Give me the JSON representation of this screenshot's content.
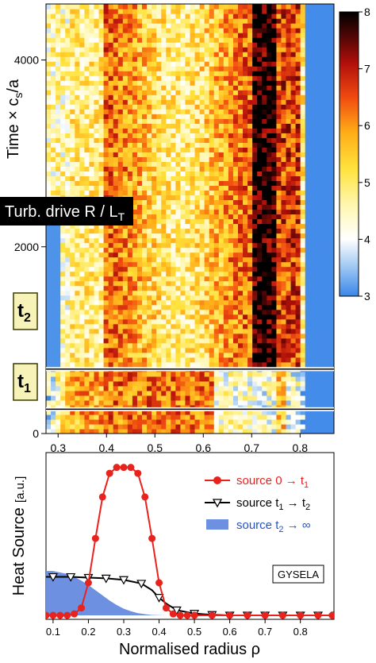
{
  "colors": {
    "map_low": "#3a86e8",
    "map_mid": "#fff5a0",
    "map_high": "#000000",
    "source1": "#e8231e",
    "source2": "#000000",
    "source3_fill": "#6d90e0",
    "source3_text": "#2452c8",
    "marker_box": "#f6f2b8",
    "drive_label_bg": "#000000"
  },
  "chart_data": [
    {
      "type": "heatmap",
      "title": "",
      "xlabel": "",
      "ylabel": "Time × c_s/a",
      "ylabel_parts": {
        "main": "Time × c",
        "sub": "s",
        "tail": "/a"
      },
      "xlim": [
        0.275,
        0.87
      ],
      "ylim": [
        0,
        4600
      ],
      "x_ticks": [
        "0.3",
        "0.4",
        "0.5",
        "0.6",
        "0.7",
        "0.8"
      ],
      "x_tick_values": [
        0.3,
        0.4,
        0.5,
        0.6,
        0.7,
        0.8
      ],
      "y_ticks": [
        "0",
        "2000",
        "4000"
      ],
      "y_tick_values": [
        0,
        2000,
        4000
      ],
      "colorbar": {
        "label": "Turb. drive R / L_T",
        "label_parts": {
          "main": "Turb. drive R / L",
          "sub": "T"
        },
        "range": [
          3,
          8
        ],
        "ticks": [
          "3",
          "4",
          "5",
          "6",
          "7",
          "8"
        ],
        "tick_values": [
          3,
          4,
          5,
          6,
          7,
          8
        ]
      },
      "markers": [
        {
          "label": "t",
          "sub": "1",
          "time": 260
        },
        {
          "label": "t",
          "sub": "2",
          "time": 690
        }
      ],
      "profile": {
        "description_rho_edges": [
          0.275,
          0.32,
          0.39,
          0.7,
          0.75,
          0.8,
          0.87
        ],
        "values": [
          3.6,
          4.8,
          5.6,
          6.4,
          7.9,
          6.8,
          3.1
        ]
      },
      "grid": false
    },
    {
      "type": "line",
      "title": "",
      "xlabel": "Normalised radius ρ",
      "ylabel": "Heat Source",
      "ylabel_unit": "[a.u.]",
      "xlim": [
        0.08,
        0.895
      ],
      "ylim": [
        0,
        1.1
      ],
      "x_ticks": [
        "0.1",
        "0.2",
        "0.3",
        "0.4",
        "0.5",
        "0.6",
        "0.7",
        "0.8"
      ],
      "x_tick_values": [
        0.1,
        0.2,
        0.3,
        0.4,
        0.5,
        0.6,
        0.7,
        0.8
      ],
      "legend_position": "top-right",
      "annotation": "GYSELA",
      "series": [
        {
          "name": "source 0 → t_1",
          "name_parts": {
            "main": "source 0 → t",
            "sub": "1",
            "tail": ""
          },
          "marker": "circle",
          "x": [
            0.08,
            0.1,
            0.12,
            0.14,
            0.16,
            0.18,
            0.2,
            0.22,
            0.24,
            0.26,
            0.28,
            0.3,
            0.32,
            0.34,
            0.36,
            0.38,
            0.4,
            0.42,
            0.44,
            0.46,
            0.48,
            0.5,
            0.55,
            0.6,
            0.65,
            0.7,
            0.75,
            0.8,
            0.85,
            0.89
          ],
          "y": [
            0.0,
            0.0,
            0.0,
            0.0,
            0.01,
            0.05,
            0.22,
            0.52,
            0.8,
            0.96,
            1.0,
            1.0,
            1.0,
            0.96,
            0.8,
            0.52,
            0.22,
            0.05,
            0.01,
            0.0,
            0.0,
            0.0,
            0.0,
            0.0,
            0.0,
            0.0,
            0.0,
            0.0,
            0.0,
            0.0
          ]
        },
        {
          "name": "source t_1 → t_2",
          "name_parts": {
            "main": "source t",
            "sub": "1",
            "tail": " → t",
            "sub2": "2"
          },
          "marker": "triangle-down",
          "x": [
            0.08,
            0.1,
            0.15,
            0.2,
            0.25,
            0.3,
            0.35,
            0.38,
            0.4,
            0.42,
            0.45,
            0.5,
            0.55,
            0.6,
            0.7,
            0.8,
            0.89
          ],
          "y": [
            0.26,
            0.26,
            0.26,
            0.255,
            0.25,
            0.24,
            0.215,
            0.17,
            0.12,
            0.08,
            0.035,
            0.012,
            0.004,
            0.0,
            0.0,
            0.0,
            0.0
          ]
        },
        {
          "name": "source t_2 → ∞",
          "name_parts": {
            "main": "source t",
            "sub": "2",
            "tail": " → ∞"
          },
          "marker": "filled-area",
          "x": [
            0.08,
            0.1,
            0.12,
            0.14,
            0.16,
            0.18,
            0.2,
            0.22,
            0.24,
            0.26,
            0.28,
            0.3,
            0.32,
            0.34,
            0.36,
            0.38,
            0.4,
            0.42,
            0.45,
            0.5,
            0.6,
            0.89
          ],
          "y": [
            0.3,
            0.3,
            0.29,
            0.28,
            0.26,
            0.235,
            0.205,
            0.17,
            0.135,
            0.1,
            0.07,
            0.045,
            0.028,
            0.015,
            0.008,
            0.003,
            0.001,
            0.0,
            0.0,
            0.0,
            0.0,
            0.0
          ]
        }
      ]
    }
  ]
}
